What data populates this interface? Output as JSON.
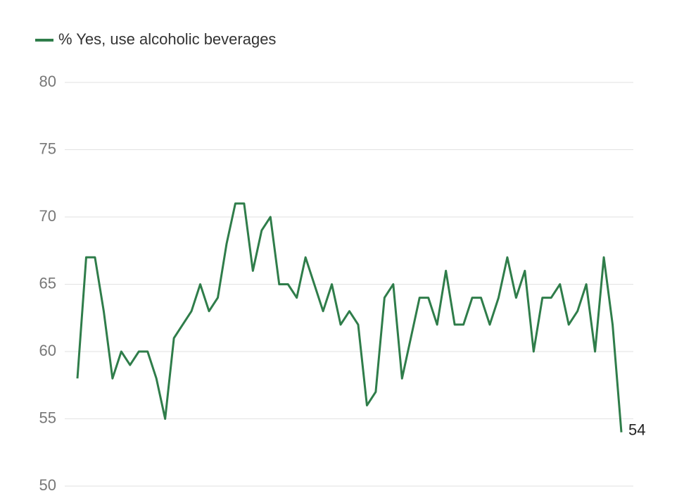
{
  "chart_data": {
    "type": "line",
    "categories": [
      null,
      null,
      null,
      null,
      null,
      null,
      null,
      null,
      null,
      null,
      null,
      null,
      null,
      null,
      null,
      null,
      null,
      null,
      null,
      null,
      null,
      null,
      null,
      null,
      null,
      null,
      null,
      null,
      null,
      null,
      null,
      null,
      null,
      null,
      null,
      null,
      null,
      null,
      null,
      null,
      null,
      null,
      null,
      null,
      null,
      null,
      null,
      null,
      null,
      null,
      null,
      null,
      null,
      null,
      null,
      null,
      null,
      null,
      null,
      null,
      null,
      null,
      null
    ],
    "series": [
      {
        "name": "% Yes, use alcoholic beverages",
        "color": "#2f7d4a",
        "values": [
          58,
          67,
          67,
          63,
          58,
          60,
          59,
          60,
          60,
          58,
          55,
          61,
          62,
          63,
          65,
          63,
          64,
          68,
          71,
          71,
          66,
          69,
          70,
          65,
          65,
          64,
          67,
          65,
          63,
          65,
          62,
          63,
          62,
          56,
          57,
          64,
          65,
          58,
          61,
          64,
          64,
          62,
          66,
          62,
          62,
          64,
          64,
          62,
          64,
          67,
          64,
          66,
          60,
          64,
          64,
          65,
          62,
          63,
          65,
          60,
          67,
          62,
          54
        ]
      }
    ],
    "ylim": [
      50,
      80
    ],
    "yticks": [
      50,
      55,
      60,
      65,
      70,
      75,
      80
    ],
    "grid": true,
    "legend": "top-left"
  }
}
